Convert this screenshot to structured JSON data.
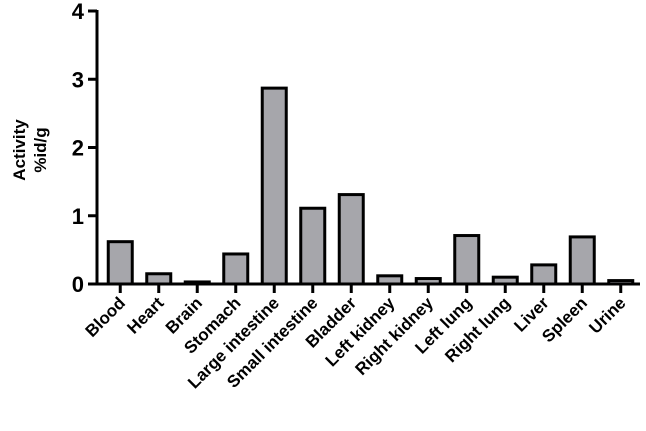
{
  "chart_data": {
    "type": "bar",
    "ylabel_line1": "Activity",
    "ylabel_line2": "%id/g",
    "xlabel": "",
    "ylim": [
      0,
      4
    ],
    "yticks": [
      0,
      1,
      2,
      3,
      4
    ],
    "grid": false,
    "bar_color": "#a6a6ab",
    "categories": [
      "Blood",
      "Heart",
      "Brain",
      "Stomach",
      "Large intestine",
      "Small intestine",
      "Bladder",
      "Left kidney",
      "Right kidney",
      "Left lung",
      "Right lung",
      "Liver",
      "Spleen",
      "Urine"
    ],
    "values": [
      0.62,
      0.15,
      0.03,
      0.44,
      2.87,
      1.11,
      1.31,
      0.12,
      0.08,
      0.71,
      0.1,
      0.28,
      0.69,
      0.05
    ]
  }
}
